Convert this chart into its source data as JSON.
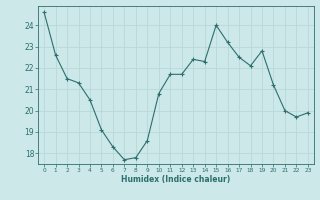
{
  "x": [
    0,
    1,
    2,
    3,
    4,
    5,
    6,
    7,
    8,
    9,
    10,
    11,
    12,
    13,
    14,
    15,
    16,
    17,
    18,
    19,
    20,
    21,
    22,
    23
  ],
  "y": [
    24.6,
    22.6,
    21.5,
    21.3,
    20.5,
    19.1,
    18.3,
    17.7,
    17.8,
    18.6,
    20.8,
    21.7,
    21.7,
    22.4,
    22.3,
    24.0,
    23.2,
    22.5,
    22.1,
    22.8,
    21.2,
    20.0,
    19.7,
    19.9
  ],
  "xlabel": "Humidex (Indice chaleur)",
  "ylabel_ticks": [
    18,
    19,
    20,
    21,
    22,
    23,
    24
  ],
  "xtick_labels": [
    "0",
    "1",
    "2",
    "3",
    "4",
    "5",
    "6",
    "7",
    "8",
    "9",
    "10",
    "11",
    "12",
    "13",
    "14",
    "15",
    "16",
    "17",
    "18",
    "19",
    "20",
    "21",
    "22",
    "23"
  ],
  "line_color": "#2d6e6e",
  "marker": "+",
  "bg_color": "#cce8e8",
  "grid_color": "#b8d8d8",
  "ylim": [
    17.5,
    24.9
  ],
  "xlim": [
    -0.5,
    23.5
  ]
}
